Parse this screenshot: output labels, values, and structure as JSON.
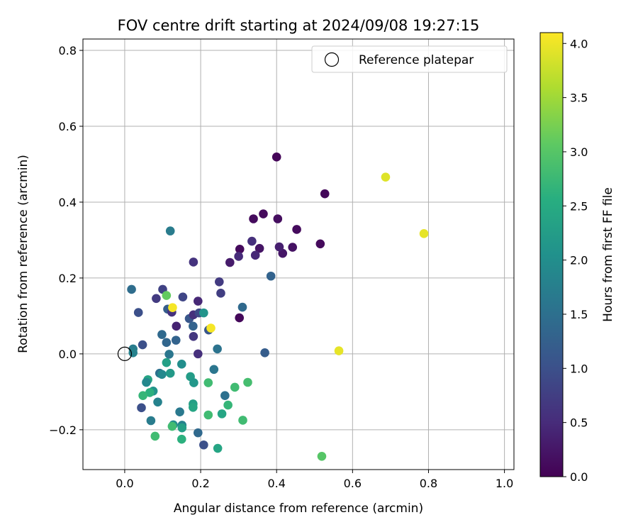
{
  "chart_data": {
    "type": "scatter",
    "title": "FOV centre drift starting at 2024/09/08 19:27:15",
    "xlabel": "Angular distance from reference (arcmin)",
    "ylabel": "Rotation from reference (arcmin)",
    "xlim": [
      -0.11,
      1.025
    ],
    "ylim": [
      -0.305,
      0.83
    ],
    "xticks": [
      0.0,
      0.2,
      0.4,
      0.6,
      0.8,
      1.0
    ],
    "xtick_labels": [
      "0.0",
      "0.2",
      "0.4",
      "0.6",
      "0.8",
      "1.0"
    ],
    "yticks": [
      -0.2,
      0.0,
      0.2,
      0.4,
      0.6,
      0.8
    ],
    "ytick_labels": [
      "−0.2",
      "0.0",
      "0.2",
      "0.4",
      "0.6",
      "0.8"
    ],
    "grid": true,
    "legend": {
      "position": "top-right",
      "label": "Reference platepar"
    },
    "reference_point": {
      "x": 0.0,
      "y": 0.0
    },
    "colorbar": {
      "label": "Hours from first FF file",
      "range": [
        0.0,
        4.1
      ],
      "ticks": [
        0.0,
        0.5,
        1.0,
        1.5,
        2.0,
        2.5,
        3.0,
        3.5,
        4.0
      ],
      "tick_labels": [
        "0.0",
        "0.5",
        "1.0",
        "1.5",
        "2.0",
        "2.5",
        "3.0",
        "3.5",
        "4.0"
      ],
      "colormap": "viridis"
    },
    "points": [
      {
        "x": 0.4,
        "y": 0.519,
        "t": 0.05
      },
      {
        "x": 0.527,
        "y": 0.422,
        "t": 0.08
      },
      {
        "x": 0.339,
        "y": 0.356,
        "t": 0.12
      },
      {
        "x": 0.365,
        "y": 0.369,
        "t": 0.1
      },
      {
        "x": 0.403,
        "y": 0.356,
        "t": 0.15
      },
      {
        "x": 0.453,
        "y": 0.328,
        "t": 0.12
      },
      {
        "x": 0.515,
        "y": 0.29,
        "t": 0.1
      },
      {
        "x": 0.442,
        "y": 0.281,
        "t": 0.2
      },
      {
        "x": 0.416,
        "y": 0.265,
        "t": 0.25
      },
      {
        "x": 0.407,
        "y": 0.282,
        "t": 0.35
      },
      {
        "x": 0.355,
        "y": 0.278,
        "t": 0.22
      },
      {
        "x": 0.303,
        "y": 0.276,
        "t": 0.1
      },
      {
        "x": 0.344,
        "y": 0.26,
        "t": 0.45
      },
      {
        "x": 0.335,
        "y": 0.297,
        "t": 0.55
      },
      {
        "x": 0.3,
        "y": 0.257,
        "t": 0.5
      },
      {
        "x": 0.277,
        "y": 0.241,
        "t": 0.3
      },
      {
        "x": 0.302,
        "y": 0.095,
        "t": 0.08
      },
      {
        "x": 0.181,
        "y": 0.242,
        "t": 0.6
      },
      {
        "x": 0.249,
        "y": 0.19,
        "t": 0.7
      },
      {
        "x": 0.253,
        "y": 0.16,
        "t": 0.75
      },
      {
        "x": 0.385,
        "y": 0.205,
        "t": 1.3
      },
      {
        "x": 0.31,
        "y": 0.123,
        "t": 1.4
      },
      {
        "x": 0.369,
        "y": 0.003,
        "t": 1.2
      },
      {
        "x": 0.244,
        "y": 0.013,
        "t": 1.55
      },
      {
        "x": 0.235,
        "y": -0.041,
        "t": 1.6
      },
      {
        "x": 0.264,
        "y": -0.11,
        "t": 1.5
      },
      {
        "x": 0.018,
        "y": 0.17,
        "t": 1.45
      },
      {
        "x": 0.036,
        "y": 0.109,
        "t": 1.0
      },
      {
        "x": 0.1,
        "y": 0.17,
        "t": 0.8
      },
      {
        "x": 0.153,
        "y": 0.15,
        "t": 0.85
      },
      {
        "x": 0.083,
        "y": 0.146,
        "t": 0.7
      },
      {
        "x": 0.193,
        "y": 0.139,
        "t": 0.45
      },
      {
        "x": 0.113,
        "y": 0.118,
        "t": 1.2
      },
      {
        "x": 0.124,
        "y": 0.11,
        "t": 0.6
      },
      {
        "x": 0.136,
        "y": 0.073,
        "t": 0.4
      },
      {
        "x": 0.17,
        "y": 0.093,
        "t": 1.1
      },
      {
        "x": 0.181,
        "y": 0.103,
        "t": 0.55
      },
      {
        "x": 0.196,
        "y": 0.108,
        "t": 0.9
      },
      {
        "x": 0.221,
        "y": 0.063,
        "t": 1.1
      },
      {
        "x": 0.18,
        "y": 0.073,
        "t": 1.3
      },
      {
        "x": 0.181,
        "y": 0.046,
        "t": 0.65
      },
      {
        "x": 0.193,
        "y": 0.0,
        "t": 0.55
      },
      {
        "x": 0.098,
        "y": 0.051,
        "t": 1.4
      },
      {
        "x": 0.11,
        "y": 0.03,
        "t": 1.35
      },
      {
        "x": 0.135,
        "y": 0.036,
        "t": 1.3
      },
      {
        "x": 0.047,
        "y": 0.024,
        "t": 1.0
      },
      {
        "x": 0.022,
        "y": 0.013,
        "t": 1.7
      },
      {
        "x": 0.022,
        "y": 0.003,
        "t": 1.8
      },
      {
        "x": 0.117,
        "y": -0.001,
        "t": 1.6
      },
      {
        "x": 0.092,
        "y": -0.051,
        "t": 1.5
      },
      {
        "x": 0.098,
        "y": -0.054,
        "t": 1.9
      },
      {
        "x": 0.12,
        "y": -0.051,
        "t": 2.2
      },
      {
        "x": 0.11,
        "y": -0.023,
        "t": 2.3
      },
      {
        "x": 0.15,
        "y": -0.027,
        "t": 2.0
      },
      {
        "x": 0.173,
        "y": -0.06,
        "t": 2.25
      },
      {
        "x": 0.182,
        "y": -0.076,
        "t": 2.15
      },
      {
        "x": 0.061,
        "y": -0.068,
        "t": 2.4
      },
      {
        "x": 0.057,
        "y": -0.075,
        "t": 1.9
      },
      {
        "x": 0.075,
        "y": -0.098,
        "t": 2.1
      },
      {
        "x": 0.066,
        "y": -0.102,
        "t": 2.6
      },
      {
        "x": 0.048,
        "y": -0.11,
        "t": 2.7
      },
      {
        "x": 0.087,
        "y": -0.127,
        "t": 1.8
      },
      {
        "x": 0.044,
        "y": -0.142,
        "t": 1.0
      },
      {
        "x": 0.069,
        "y": -0.176,
        "t": 1.7
      },
      {
        "x": 0.145,
        "y": -0.153,
        "t": 1.65
      },
      {
        "x": 0.18,
        "y": -0.132,
        "t": 2.3
      },
      {
        "x": 0.18,
        "y": -0.141,
        "t": 2.4
      },
      {
        "x": 0.151,
        "y": -0.188,
        "t": 1.8
      },
      {
        "x": 0.128,
        "y": -0.187,
        "t": 2.0
      },
      {
        "x": 0.125,
        "y": -0.191,
        "t": 2.8
      },
      {
        "x": 0.151,
        "y": -0.195,
        "t": 2.3
      },
      {
        "x": 0.08,
        "y": -0.217,
        "t": 2.8
      },
      {
        "x": 0.15,
        "y": -0.225,
        "t": 2.6
      },
      {
        "x": 0.193,
        "y": -0.208,
        "t": 1.4
      },
      {
        "x": 0.208,
        "y": -0.24,
        "t": 1.0
      },
      {
        "x": 0.245,
        "y": -0.249,
        "t": 2.4
      },
      {
        "x": 0.22,
        "y": -0.076,
        "t": 2.8
      },
      {
        "x": 0.22,
        "y": -0.161,
        "t": 2.8
      },
      {
        "x": 0.256,
        "y": -0.158,
        "t": 2.4
      },
      {
        "x": 0.272,
        "y": -0.135,
        "t": 2.7
      },
      {
        "x": 0.29,
        "y": -0.088,
        "t": 2.8
      },
      {
        "x": 0.324,
        "y": -0.075,
        "t": 2.85
      },
      {
        "x": 0.311,
        "y": -0.175,
        "t": 2.8
      },
      {
        "x": 0.519,
        "y": -0.27,
        "t": 3.0
      },
      {
        "x": 0.11,
        "y": 0.154,
        "t": 3.1
      },
      {
        "x": 0.208,
        "y": 0.108,
        "t": 2.1
      },
      {
        "x": 0.12,
        "y": 0.324,
        "t": 1.7
      },
      {
        "x": 0.126,
        "y": 0.122,
        "t": 4.05
      },
      {
        "x": 0.227,
        "y": 0.068,
        "t": 4.05
      },
      {
        "x": 0.564,
        "y": 0.008,
        "t": 3.95
      },
      {
        "x": 0.687,
        "y": 0.466,
        "t": 3.9
      },
      {
        "x": 0.788,
        "y": 0.317,
        "t": 3.95
      }
    ]
  }
}
